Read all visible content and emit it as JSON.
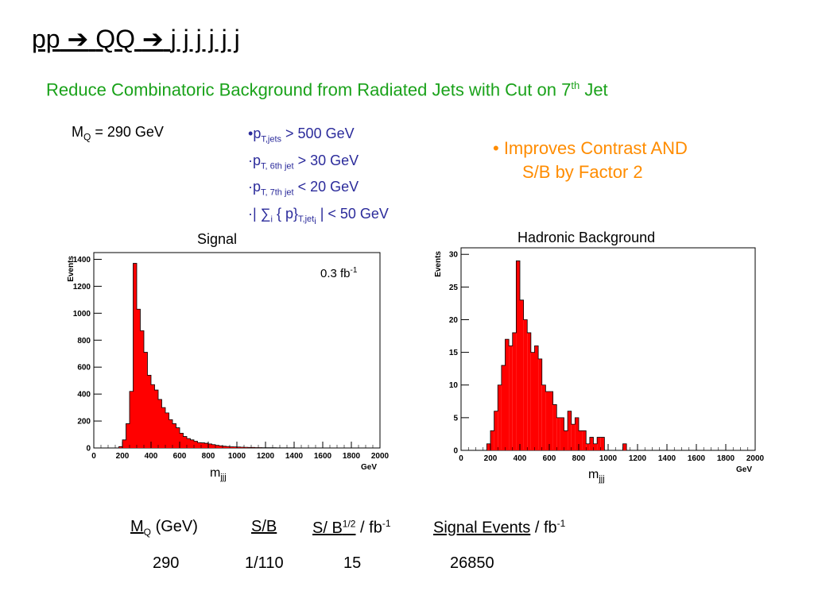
{
  "title": {
    "pp": "pp",
    "arrow": "➔",
    "qq": "QQ",
    "jets": "j j j j j j"
  },
  "subtitle": {
    "text": "Reduce Combinatoric Background from Radiated Jets with Cut on 7",
    "sup": "th",
    "tail": "Jet"
  },
  "mass": {
    "sym": "M",
    "sub": "Q",
    "value": "= 290 GeV"
  },
  "cuts": [
    {
      "bullet": "•",
      "sym": "p",
      "sub": "T,jets",
      "rest": ">  500 GeV"
    },
    {
      "bullet": "·",
      "sym": "p",
      "sub": "T, 6th jet",
      "rest": "> 30 GeV"
    },
    {
      "bullet": "·",
      "sym": "p",
      "sub": "T, 7th jet",
      "rest": "< 20 GeV"
    },
    {
      "bullet": "·",
      "pre": "| ∑",
      "sub1": "i",
      "mid": "{ p}",
      "sub": "T,jet",
      "subsub": "i",
      "rest": "| <  50 GeV"
    }
  ],
  "note": {
    "line1": "• Improves Contrast AND",
    "line2": "S/B by Factor 2"
  },
  "xvar": {
    "sym": "m",
    "sub": "jjj"
  },
  "table": {
    "headers": {
      "mq": {
        "sym": "M",
        "sub": "Q",
        "rest": " (GeV)"
      },
      "sb": "S/B",
      "ssb": {
        "text": "S/ B",
        "sup": "1/2",
        "rest": " / fb",
        "sup2": "-1"
      },
      "sig": {
        "text": "Signal Events",
        "rest": " / fb",
        "sup": "-1"
      }
    },
    "row": [
      "290",
      "1/110",
      "15",
      "26850"
    ]
  },
  "chart_data": [
    {
      "type": "bar",
      "title": "Signal",
      "xlabel": "GeV",
      "ylabel": "Events",
      "annotation": {
        "text": "0.3 fb",
        "sup": "-1"
      },
      "xlim": [
        0,
        2000
      ],
      "ylim": [
        0,
        1450
      ],
      "xticks": [
        0,
        200,
        400,
        600,
        800,
        1000,
        1200,
        1400,
        1600,
        1800,
        2000
      ],
      "yticks": [
        0,
        200,
        400,
        600,
        800,
        1000,
        1200,
        1400
      ],
      "bin_width": 25,
      "bin_start": 0,
      "values": [
        0,
        0,
        0,
        0,
        0,
        0,
        0,
        10,
        60,
        180,
        420,
        1370,
        1030,
        870,
        710,
        540,
        470,
        430,
        360,
        300,
        260,
        210,
        180,
        150,
        110,
        85,
        70,
        60,
        50,
        40,
        38,
        35,
        30,
        25,
        20,
        16,
        13,
        11,
        9,
        8,
        7,
        6,
        5,
        4,
        4,
        3,
        3,
        2,
        2,
        2,
        2,
        1,
        1,
        1,
        1,
        1,
        0,
        0,
        0,
        0,
        0,
        0,
        0,
        0,
        0,
        0,
        0,
        0,
        0,
        0,
        0,
        0,
        0,
        0,
        0,
        0,
        0,
        0,
        0,
        0
      ]
    },
    {
      "type": "bar",
      "title": "Hadronic Background",
      "xlabel": "GeV",
      "ylabel": "Events",
      "xlim": [
        0,
        2000
      ],
      "ylim": [
        0,
        31
      ],
      "xticks": [
        0,
        200,
        400,
        600,
        800,
        1000,
        1200,
        1400,
        1600,
        1800,
        2000
      ],
      "yticks": [
        0,
        5,
        10,
        15,
        20,
        25,
        30
      ],
      "bin_width": 25,
      "bin_start": 0,
      "values": [
        0,
        0,
        0,
        0,
        0,
        0,
        0,
        1,
        3,
        6,
        10,
        13,
        17,
        16,
        18,
        29,
        23,
        20,
        18,
        15,
        16,
        14,
        10,
        9,
        9,
        7,
        5,
        5,
        3,
        6,
        4,
        5,
        3,
        3,
        1,
        2,
        1,
        2,
        2,
        0,
        0,
        0,
        0,
        0,
        1,
        0,
        0,
        0,
        0,
        0,
        0,
        0,
        0,
        0,
        0,
        0,
        0,
        0,
        0,
        0,
        0,
        0,
        0,
        0,
        0,
        0,
        0,
        0,
        0,
        0,
        0,
        0,
        0,
        0,
        0,
        0,
        0,
        0,
        0,
        0
      ]
    }
  ]
}
